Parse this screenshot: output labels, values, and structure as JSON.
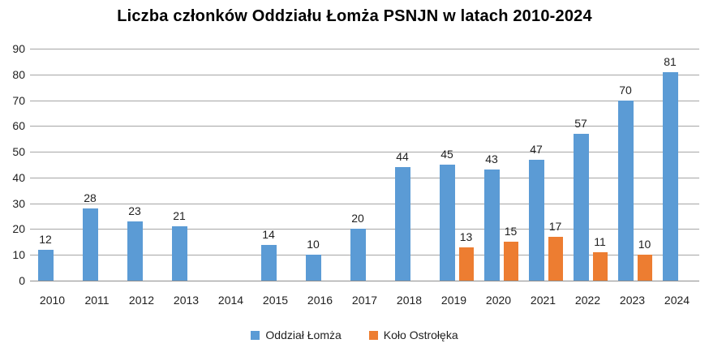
{
  "chart_data": {
    "type": "bar",
    "title": "Liczba członków Oddziału Łomża PSNJN w latach 2010-2024",
    "categories": [
      "2010",
      "2011",
      "2012",
      "2013",
      "2014",
      "2015",
      "2016",
      "2017",
      "2018",
      "2019",
      "2020",
      "2021",
      "2022",
      "2023",
      "2024"
    ],
    "series": [
      {
        "name": "Oddział Łomża",
        "color": "#5B9BD5",
        "values": [
          12,
          28,
          23,
          21,
          null,
          14,
          10,
          20,
          44,
          45,
          43,
          47,
          57,
          70,
          81
        ]
      },
      {
        "name": "Koło Ostrołęka",
        "color": "#ED7D31",
        "values": [
          null,
          null,
          null,
          null,
          null,
          null,
          null,
          null,
          null,
          13,
          15,
          17,
          11,
          10,
          null
        ]
      }
    ],
    "xlabel": "",
    "ylabel": "",
    "ylim": [
      0,
      90
    ],
    "ytick_step": 10,
    "yticks": [
      0,
      10,
      20,
      30,
      40,
      50,
      60,
      70,
      80,
      90
    ],
    "grid": true,
    "data_labels": true,
    "legend_position": "bottom"
  },
  "colors": {
    "series_blue": "#5B9BD5",
    "series_orange": "#ED7D31",
    "gridline": "#A6A6A6",
    "text": "#1f1f1f",
    "background": "#FFFFFF"
  }
}
